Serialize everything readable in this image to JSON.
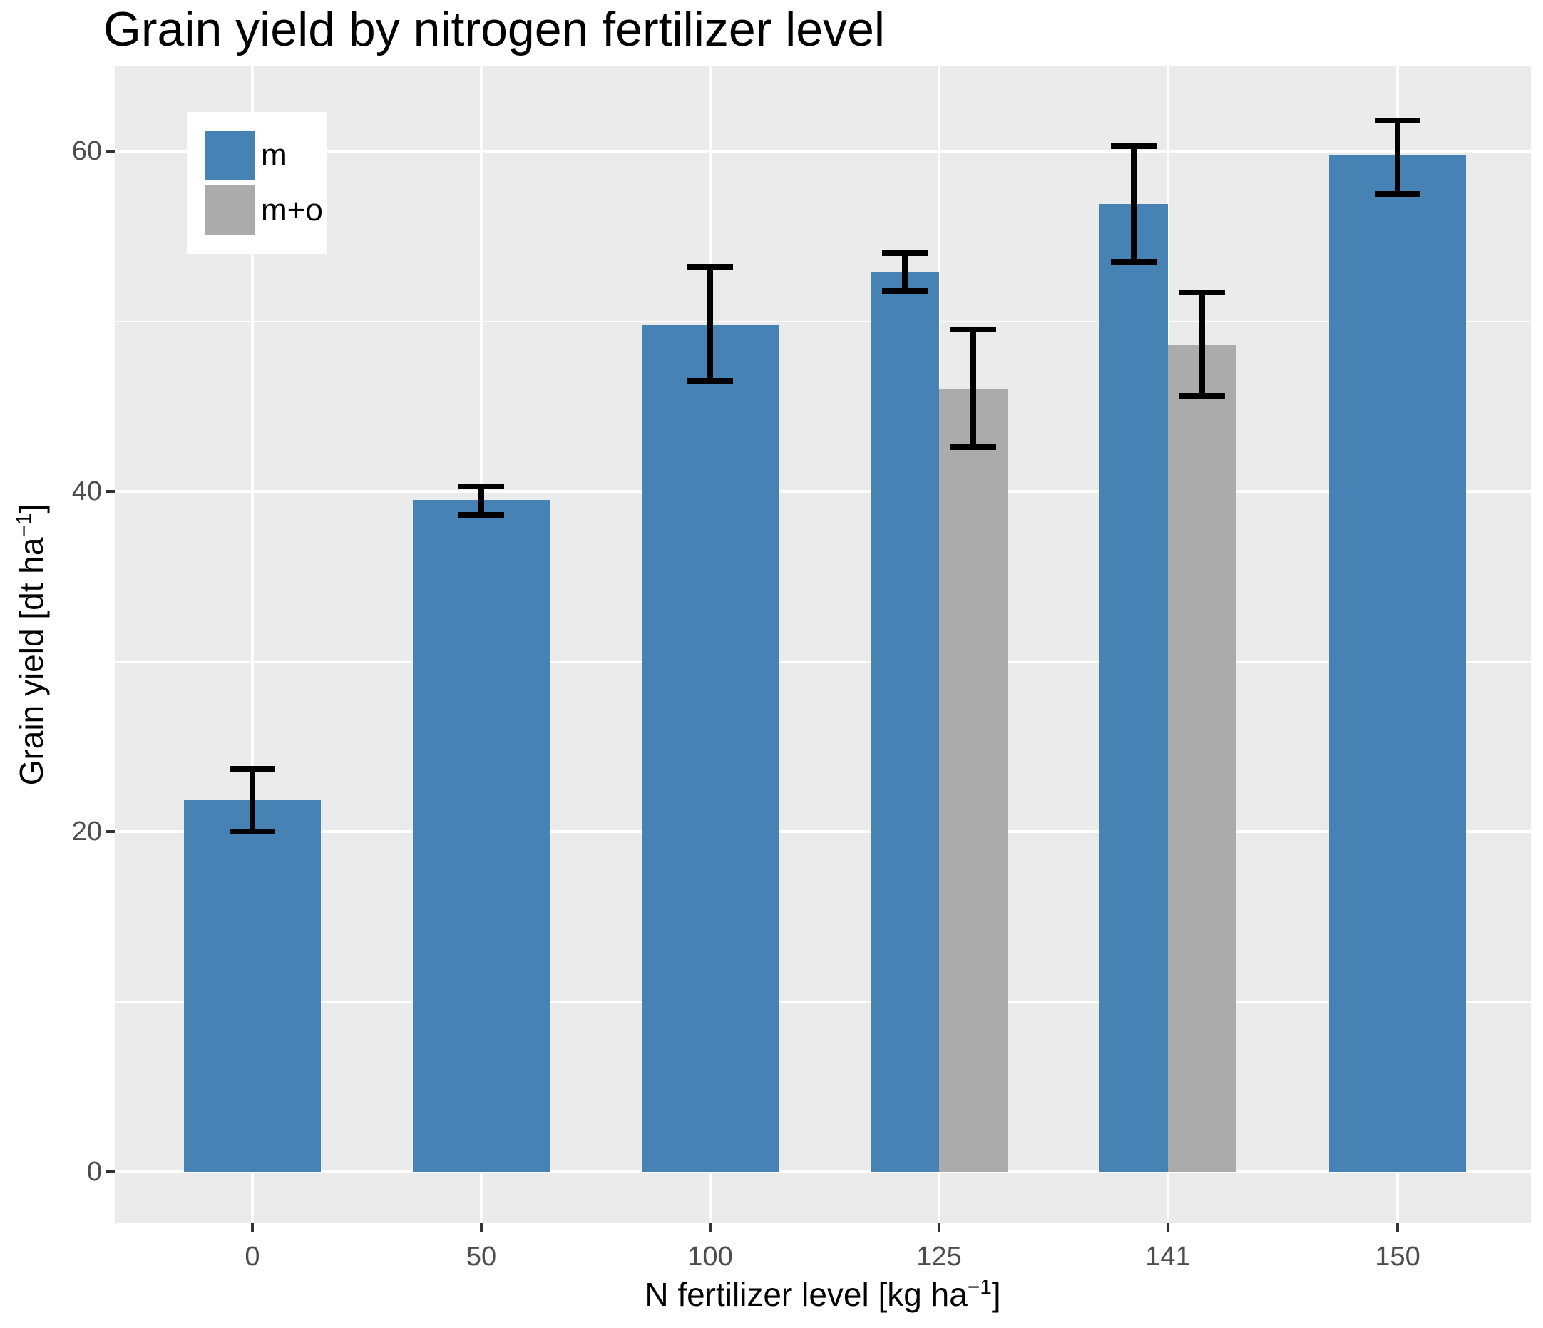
{
  "title": "Grain yield by nitrogen fertilizer level",
  "axes": {
    "x": {
      "label_prefix": "N fertilizer level [kg ha",
      "label_sup": "−1",
      "label_suffix": "]",
      "ticks": [
        "0",
        "50",
        "100",
        "125",
        "141",
        "150"
      ]
    },
    "y": {
      "label_prefix": "Grain yield [dt ha",
      "label_sup": "−1",
      "label_suffix": "]",
      "ticks": [
        0,
        20,
        40,
        60
      ]
    }
  },
  "legend": {
    "items": [
      {
        "label": "m",
        "color": "#4682B4"
      },
      {
        "label": "m+o",
        "color": "#ABABAB"
      }
    ]
  },
  "colors": {
    "bar_blue": "#4682B4",
    "bar_gray": "#ABABAB",
    "panel_bg": "#EBEBEB",
    "grid": "#FFFFFF",
    "error_bar": "#000000",
    "tick_mark": "#333333",
    "tick_label": "#4D4D4D",
    "title_text": "#000000"
  },
  "chart_data": {
    "type": "bar",
    "title": "Grain yield by nitrogen fertilizer level",
    "xlabel": "N fertilizer level [kg ha⁻¹]",
    "ylabel": "Grain yield [dt ha⁻¹]",
    "categories": [
      "0",
      "50",
      "100",
      "125",
      "141",
      "150"
    ],
    "series": [
      {
        "name": "m",
        "color": "#4682B4",
        "values": [
          21.9,
          39.5,
          49.8,
          52.9,
          56.9,
          59.8
        ],
        "error_low": [
          20.0,
          38.6,
          46.5,
          51.8,
          53.5,
          57.5
        ],
        "error_high": [
          23.7,
          40.3,
          53.2,
          54.0,
          60.3,
          61.8
        ]
      },
      {
        "name": "m+o",
        "color": "#ABABAB",
        "values": [
          null,
          null,
          null,
          46.0,
          48.6,
          null
        ],
        "error_low": [
          null,
          null,
          null,
          42.6,
          45.6,
          null
        ],
        "error_high": [
          null,
          null,
          null,
          49.5,
          51.7,
          null
        ]
      }
    ],
    "ylim": [
      -3,
      65
    ],
    "yticks_major": [
      0,
      20,
      40,
      60
    ],
    "yticks_minor": [
      10,
      30,
      50
    ],
    "grid": true,
    "legend_position": "top-left-inside"
  }
}
